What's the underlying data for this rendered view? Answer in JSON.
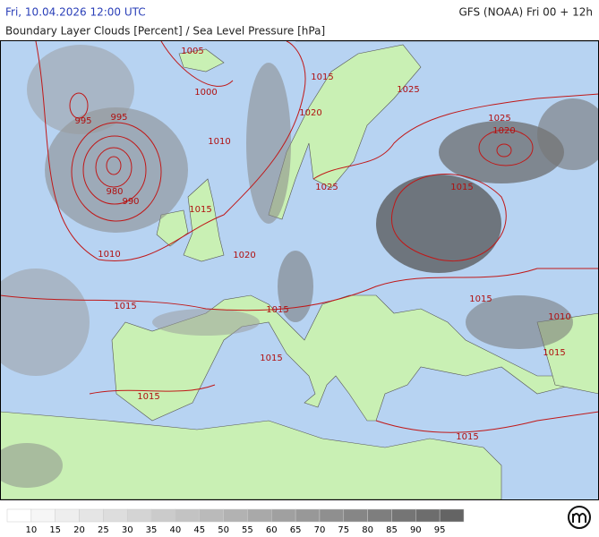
{
  "header": {
    "datetime": "Fri, 10.04.2026 12:00 UTC",
    "model": "GFS (NOAA) Fri 00 + 12h",
    "title": "Boundary Layer Clouds [Percent] / Sea Level Pressure [hPa]"
  },
  "isobar_labels": [
    1005,
    1000,
    995,
    995,
    980,
    990,
    1010,
    1015,
    1010,
    1015,
    1025,
    1020,
    1025,
    1020,
    1025,
    1015,
    1020,
    1015,
    1015,
    1015,
    1010,
    1015,
    1015,
    1015,
    1015
  ],
  "colorbar": {
    "labels": [
      10,
      15,
      20,
      25,
      30,
      35,
      40,
      45,
      50,
      55,
      60,
      65,
      70,
      75,
      80,
      85,
      90,
      95
    ]
  }
}
